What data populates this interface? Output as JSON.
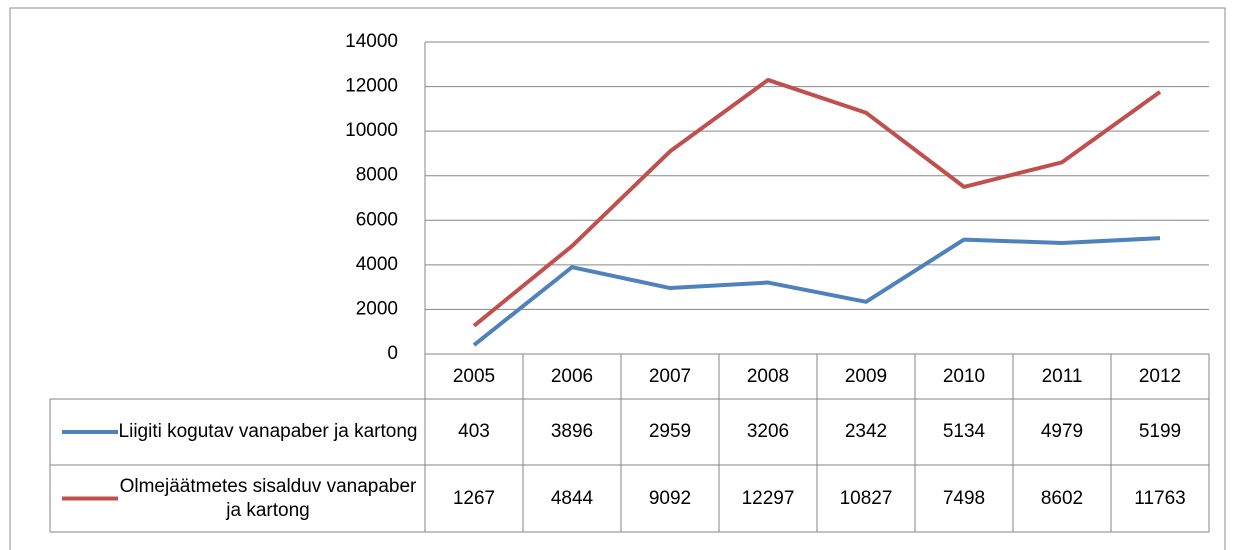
{
  "chart_data": {
    "type": "line",
    "categories": [
      "2005",
      "2006",
      "2007",
      "2008",
      "2009",
      "2010",
      "2011",
      "2012"
    ],
    "series": [
      {
        "name": "Liigiti kogutav vanapaber ja kartong",
        "color": "#4f81bd",
        "values": [
          403,
          3896,
          2959,
          3206,
          2342,
          5134,
          4979,
          5199
        ]
      },
      {
        "name": "Olmejäätmetes sisalduv vanapaber ja kartong",
        "color": "#c0504d",
        "values": [
          1267,
          4844,
          9092,
          12297,
          10827,
          7498,
          8602,
          11763
        ]
      }
    ],
    "ylim": [
      0,
      14000
    ],
    "yticks": [
      0,
      2000,
      4000,
      6000,
      8000,
      10000,
      12000,
      14000
    ],
    "grid": true
  }
}
